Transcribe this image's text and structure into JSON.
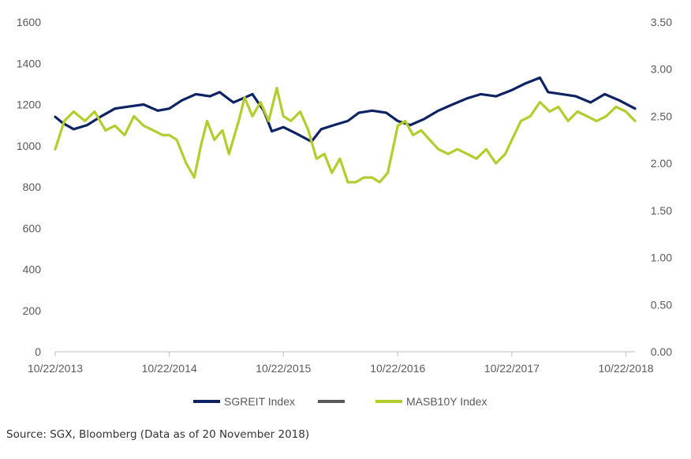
{
  "chart_data": {
    "type": "line",
    "title": "",
    "xlabel": "",
    "ylabel": "",
    "x_ticks": [
      "10/22/2013",
      "10/22/2014",
      "10/22/2015",
      "10/22/2016",
      "10/22/2017",
      "10/22/2018"
    ],
    "y_left": {
      "range": [
        0,
        1600
      ],
      "ticks": [
        "0",
        "200",
        "400",
        "600",
        "800",
        "1000",
        "1200",
        "1400",
        "1600"
      ]
    },
    "y_right": {
      "range": [
        0,
        3.5
      ],
      "ticks": [
        "0.00",
        "0.50",
        "1.00",
        "1.50",
        "2.00",
        "2.50",
        "3.00",
        "3.50"
      ]
    },
    "grid": false,
    "legend_position": "bottom",
    "series": [
      {
        "name": "SGREIT Index",
        "axis": "left",
        "color": "#0d2364",
        "x": [
          "2013-10-22",
          "2013-11-15",
          "2013-12-20",
          "2014-02-01",
          "2014-03-15",
          "2014-05-01",
          "2014-06-15",
          "2014-08-01",
          "2014-09-15",
          "2014-10-22",
          "2014-12-01",
          "2015-01-15",
          "2015-03-01",
          "2015-04-01",
          "2015-05-15",
          "2015-06-15",
          "2015-07-15",
          "2015-08-20",
          "2015-09-15",
          "2015-10-22",
          "2015-12-01",
          "2016-01-20",
          "2016-02-20",
          "2016-04-01",
          "2016-05-15",
          "2016-06-20",
          "2016-08-01",
          "2016-09-15",
          "2016-10-22",
          "2016-12-01",
          "2017-01-15",
          "2017-03-01",
          "2017-04-15",
          "2017-06-01",
          "2017-07-15",
          "2017-09-01",
          "2017-10-22",
          "2017-12-01",
          "2018-01-20",
          "2018-02-15",
          "2018-04-01",
          "2018-05-15",
          "2018-07-01",
          "2018-08-15",
          "2018-10-01",
          "2018-11-20"
        ],
        "y": [
          1140,
          1110,
          1080,
          1100,
          1140,
          1180,
          1190,
          1200,
          1170,
          1180,
          1220,
          1250,
          1240,
          1260,
          1210,
          1230,
          1250,
          1170,
          1070,
          1090,
          1060,
          1020,
          1080,
          1100,
          1120,
          1160,
          1170,
          1160,
          1120,
          1100,
          1130,
          1170,
          1200,
          1230,
          1250,
          1240,
          1270,
          1300,
          1330,
          1260,
          1250,
          1240,
          1210,
          1250,
          1220,
          1180
        ]
      },
      {
        "name": "MASB10Y Index",
        "axis": "right",
        "color": "#b5cc2e",
        "x": [
          "2013-10-22",
          "2013-11-20",
          "2013-12-20",
          "2014-01-25",
          "2014-02-25",
          "2014-04-01",
          "2014-05-01",
          "2014-06-01",
          "2014-07-01",
          "2014-08-01",
          "2014-09-01",
          "2014-10-01",
          "2014-10-22",
          "2014-11-15",
          "2014-12-15",
          "2015-01-10",
          "2015-02-01",
          "2015-02-20",
          "2015-03-15",
          "2015-04-10",
          "2015-05-01",
          "2015-06-01",
          "2015-06-20",
          "2015-07-15",
          "2015-08-10",
          "2015-09-05",
          "2015-10-01",
          "2015-10-22",
          "2015-11-15",
          "2015-12-15",
          "2016-01-10",
          "2016-02-05",
          "2016-03-01",
          "2016-03-25",
          "2016-04-20",
          "2016-05-15",
          "2016-06-10",
          "2016-07-05",
          "2016-08-01",
          "2016-08-25",
          "2016-09-20",
          "2016-10-22",
          "2016-11-15",
          "2016-12-10",
          "2017-01-05",
          "2017-02-01",
          "2017-03-01",
          "2017-04-01",
          "2017-05-01",
          "2017-06-01",
          "2017-07-01",
          "2017-08-01",
          "2017-09-01",
          "2017-10-01",
          "2017-10-22",
          "2017-11-20",
          "2017-12-20",
          "2018-01-20",
          "2018-02-20",
          "2018-03-20",
          "2018-04-20",
          "2018-05-20",
          "2018-06-20",
          "2018-07-20",
          "2018-08-20",
          "2018-09-20",
          "2018-10-22",
          "2018-11-20"
        ],
        "y": [
          2.15,
          2.45,
          2.55,
          2.45,
          2.55,
          2.35,
          2.4,
          2.3,
          2.5,
          2.4,
          2.35,
          2.3,
          2.3,
          2.25,
          2.0,
          1.85,
          2.2,
          2.45,
          2.25,
          2.35,
          2.1,
          2.45,
          2.7,
          2.5,
          2.65,
          2.45,
          2.8,
          2.5,
          2.45,
          2.55,
          2.35,
          2.05,
          2.1,
          1.9,
          2.05,
          1.8,
          1.8,
          1.85,
          1.85,
          1.8,
          1.9,
          2.4,
          2.45,
          2.3,
          2.35,
          2.25,
          2.15,
          2.1,
          2.15,
          2.1,
          2.05,
          2.15,
          2.0,
          2.1,
          2.25,
          2.45,
          2.5,
          2.65,
          2.55,
          2.6,
          2.45,
          2.55,
          2.5,
          2.45,
          2.5,
          2.6,
          2.55,
          2.45
        ]
      }
    ]
  },
  "legend": {
    "items": [
      {
        "label": "SGREIT Index",
        "color": "#0d2364"
      },
      {
        "label": "",
        "color": "#595959"
      },
      {
        "label": "MASB10Y Index",
        "color": "#b5cc2e"
      }
    ]
  },
  "source_note": "Source: SGX, Bloomberg (Data as of 20 November 2018)"
}
